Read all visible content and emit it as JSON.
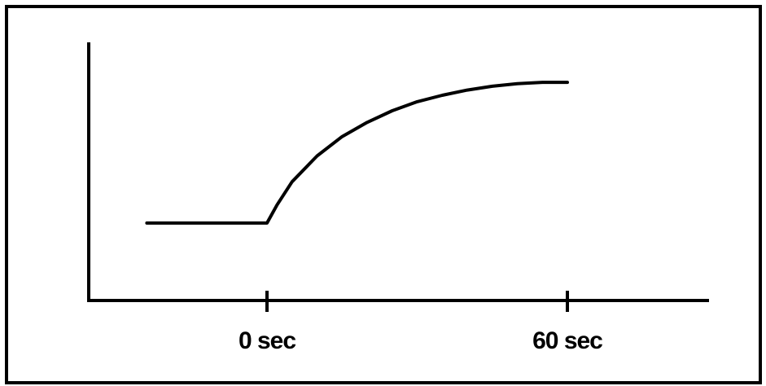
{
  "chart_data": {
    "type": "line",
    "title": "",
    "xlabel": "",
    "ylabel": "",
    "x_ticks": [
      {
        "value": 0,
        "label": "0 sec"
      },
      {
        "value": 60,
        "label": "60 sec"
      }
    ],
    "xlim": [
      -35,
      88
    ],
    "ylim": [
      0,
      1
    ],
    "grid": false,
    "legend": "none",
    "series": [
      {
        "x": [
          -24,
          -15,
          -5,
          0,
          2,
          5,
          10,
          15,
          20,
          25,
          30,
          35,
          40,
          45,
          50,
          55,
          60
        ],
        "y": [
          0.3,
          0.3,
          0.3,
          0.3,
          0.37,
          0.46,
          0.56,
          0.635,
          0.69,
          0.735,
          0.77,
          0.795,
          0.815,
          0.83,
          0.84,
          0.845,
          0.845
        ]
      }
    ],
    "colors": {
      "line": "#000000",
      "axes": "#000000",
      "frame": "#000000",
      "background": "#ffffff"
    }
  }
}
